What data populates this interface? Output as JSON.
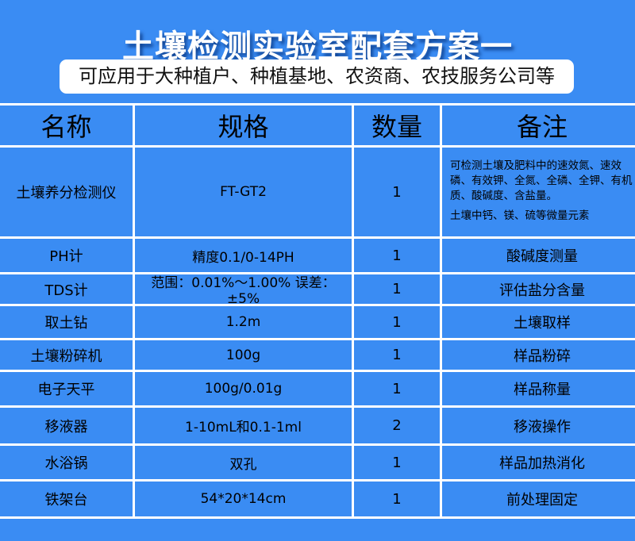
{
  "title": "土壤检测实验室配套方案一",
  "subtitle": "可应用于大种植户、种植基地、农资商、农技服务公司等",
  "table": {
    "headers": [
      "名称",
      "规格",
      "数量",
      "备注"
    ],
    "rows": [
      {
        "name": "土壤养分检测仪",
        "spec": "FT-GT2",
        "qty": "1",
        "note": "可检测土壤及肥料中的速效氮、速效磷、有效钾、全氮、全磷、全钾、有机质、酸碱度、含盐量。",
        "note2": "土壤中钙、镁、硫等微量元素"
      },
      {
        "name": "PH计",
        "spec": "精度0.1/0-14PH",
        "qty": "1",
        "note": "酸碱度测量"
      },
      {
        "name": "TDS计",
        "spec": "范围：0.01%～1.00%  误差：±5%",
        "qty": "1",
        "note": "评估盐分含量"
      },
      {
        "name": "取土钻",
        "spec": "1.2m",
        "qty": "1",
        "note": "土壤取样"
      },
      {
        "name": "土壤粉碎机",
        "spec": "100g",
        "qty": "1",
        "note": "样品粉碎"
      },
      {
        "name": "电子天平",
        "spec": "100g/0.01g",
        "qty": "1",
        "note": "样品称量"
      },
      {
        "name": "移液器",
        "spec": "1-10mL和0.1-1ml",
        "qty": "2",
        "note": "移液操作"
      },
      {
        "name": "水浴锅",
        "spec": "双孔",
        "qty": "1",
        "note": "样品加热消化"
      },
      {
        "name": "铁架台",
        "spec": "54*20*14cm",
        "qty": "1",
        "note": "前处理固定"
      }
    ]
  },
  "colors": {
    "background": "#3a8cf3",
    "grid_lines": "#ffffff"
  }
}
